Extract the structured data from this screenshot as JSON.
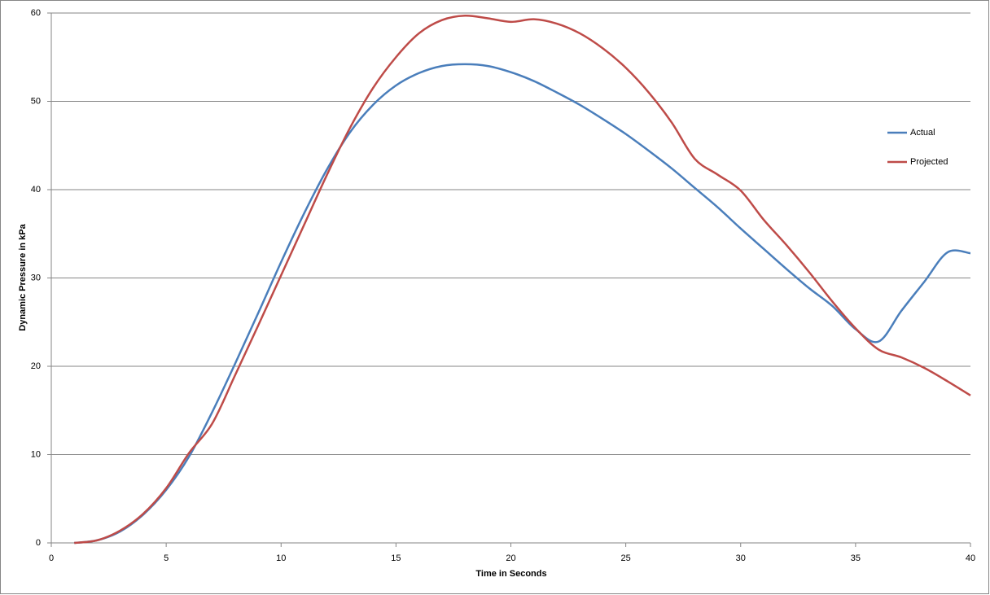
{
  "chart_data": {
    "type": "line",
    "x_label": "Time in Seconds",
    "y_label": "Dynamic Pressure in kPa",
    "x": [
      1,
      2,
      3,
      4,
      5,
      6,
      7,
      8,
      9,
      10,
      11,
      12,
      13,
      14,
      15,
      16,
      17,
      18,
      19,
      20,
      21,
      22,
      23,
      24,
      25,
      26,
      27,
      28,
      29,
      30,
      31,
      32,
      33,
      34,
      35,
      36,
      37,
      38,
      39,
      40
    ],
    "series": [
      {
        "name": "Actual",
        "color": "#4a7ebb",
        "values": [
          0,
          0.3,
          1.3,
          3.2,
          6,
          9.8,
          14.8,
          20.3,
          26,
          31.8,
          37.3,
          42.3,
          46.5,
          49.6,
          51.8,
          53.2,
          54,
          54.2,
          54,
          53.3,
          52.3,
          51,
          49.6,
          48,
          46.3,
          44.4,
          42.4,
          40.2,
          38,
          35.6,
          33.3,
          31,
          28.8,
          26.8,
          24.2,
          22.8,
          26.3,
          29.6,
          32.9,
          32.8
        ]
      },
      {
        "name": "Projected",
        "color": "#be4b48",
        "values": [
          0,
          0.3,
          1.4,
          3.3,
          6.2,
          10.2,
          13.5,
          19,
          24.6,
          30.3,
          36,
          41.7,
          47,
          51.5,
          55,
          57.7,
          59.2,
          59.7,
          59.4,
          59,
          59.3,
          58.8,
          57.7,
          56,
          53.8,
          51,
          47.6,
          43.5,
          41.7,
          39.9,
          36.6,
          33.7,
          30.6,
          27.3,
          24.3,
          21.9,
          21,
          19.8,
          18.3,
          16.7
        ]
      }
    ],
    "xlim": [
      0,
      40
    ],
    "xticks": [
      0,
      5,
      10,
      15,
      20,
      25,
      30,
      35,
      40
    ],
    "ylim": [
      0,
      60
    ],
    "yticks": [
      0,
      10,
      20,
      30,
      40,
      50,
      60
    ],
    "grid": true,
    "legend": "right",
    "smooth": true
  }
}
